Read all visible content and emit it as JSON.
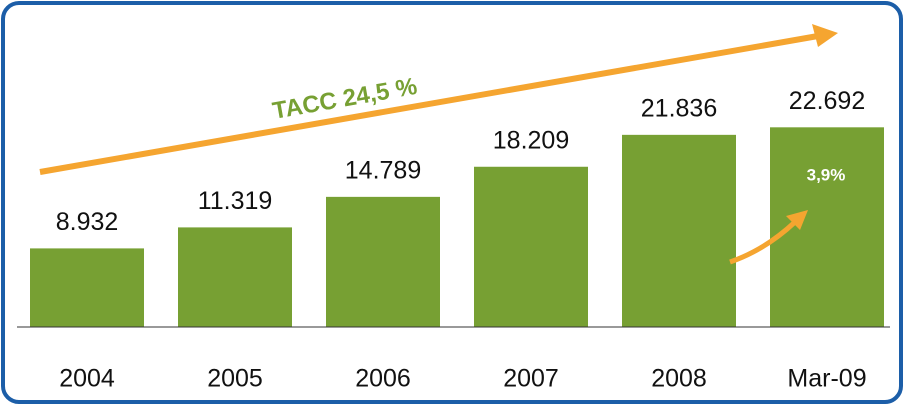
{
  "chart_data": {
    "type": "bar",
    "categories": [
      "2004",
      "2005",
      "2006",
      "2007",
      "2008",
      "Mar-09"
    ],
    "values": [
      8932,
      11319,
      14789,
      18209,
      21836,
      22692
    ],
    "value_labels": [
      "8.932",
      "11.319",
      "14.789",
      "18.209",
      "21.836",
      "22.692"
    ],
    "color": "#77a033",
    "ylim": [
      0,
      25000
    ],
    "annotations": [
      "TACC 24,5 %",
      "3,9%"
    ]
  }
}
